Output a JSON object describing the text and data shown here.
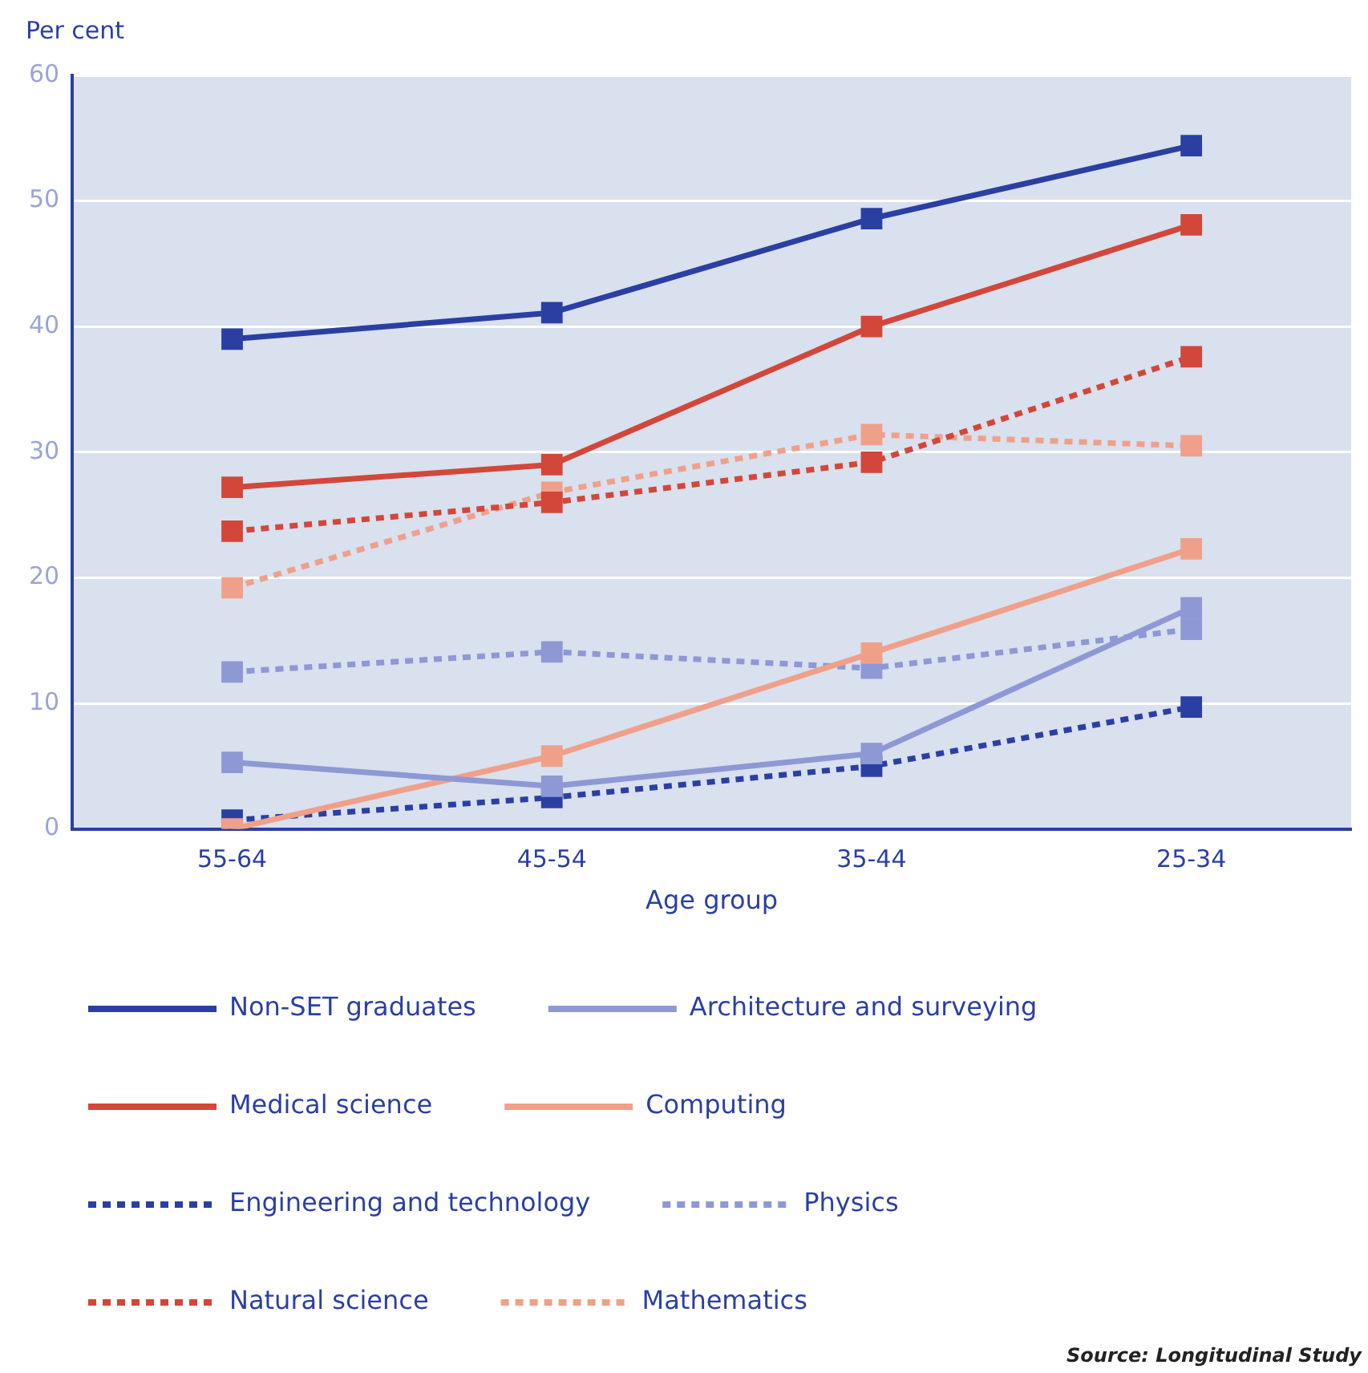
{
  "chart_data": {
    "type": "line",
    "ylabel": "Per cent",
    "xlabel": "Age group",
    "categories": [
      "55-64",
      "45-54",
      "35-44",
      "25-34"
    ],
    "ylim": [
      0,
      60
    ],
    "yticks": [
      0,
      10,
      20,
      30,
      40,
      50,
      60
    ],
    "grid": "y",
    "legend": "bottom",
    "marker": "square",
    "annotations": [
      "Source: Longitudinal Study"
    ],
    "series": [
      {
        "name": "Non-SET graduates",
        "color": "#2b3fa3",
        "line_style": "solid",
        "values": [
          39.0,
          41.1,
          48.6,
          54.4
        ]
      },
      {
        "name": "Architecture and surveying",
        "color": "#8d98d4",
        "line_style": "solid",
        "values": [
          5.3,
          3.4,
          6.0,
          17.6
        ]
      },
      {
        "name": "Medical science",
        "color": "#d2473a",
        "line_style": "solid",
        "values": [
          27.2,
          29.0,
          40.0,
          48.1
        ]
      },
      {
        "name": "Computing",
        "color": "#f0a08a",
        "line_style": "solid",
        "values": [
          0.0,
          5.8,
          14.0,
          22.3
        ]
      },
      {
        "name": "Engineering and technology",
        "color": "#2b3fa3",
        "line_style": "dotted",
        "values": [
          0.7,
          2.5,
          5.0,
          9.7
        ]
      },
      {
        "name": "Physics",
        "color": "#8d98d4",
        "line_style": "dotted",
        "values": [
          12.5,
          14.1,
          12.8,
          15.9
        ]
      },
      {
        "name": "Natural science",
        "color": "#d2473a",
        "line_style": "dotted",
        "values": [
          23.7,
          26.0,
          29.2,
          37.6
        ]
      },
      {
        "name": "Mathematics",
        "color": "#f0a08a",
        "line_style": "dotted",
        "values": [
          19.2,
          26.8,
          31.4,
          30.5
        ]
      }
    ]
  }
}
